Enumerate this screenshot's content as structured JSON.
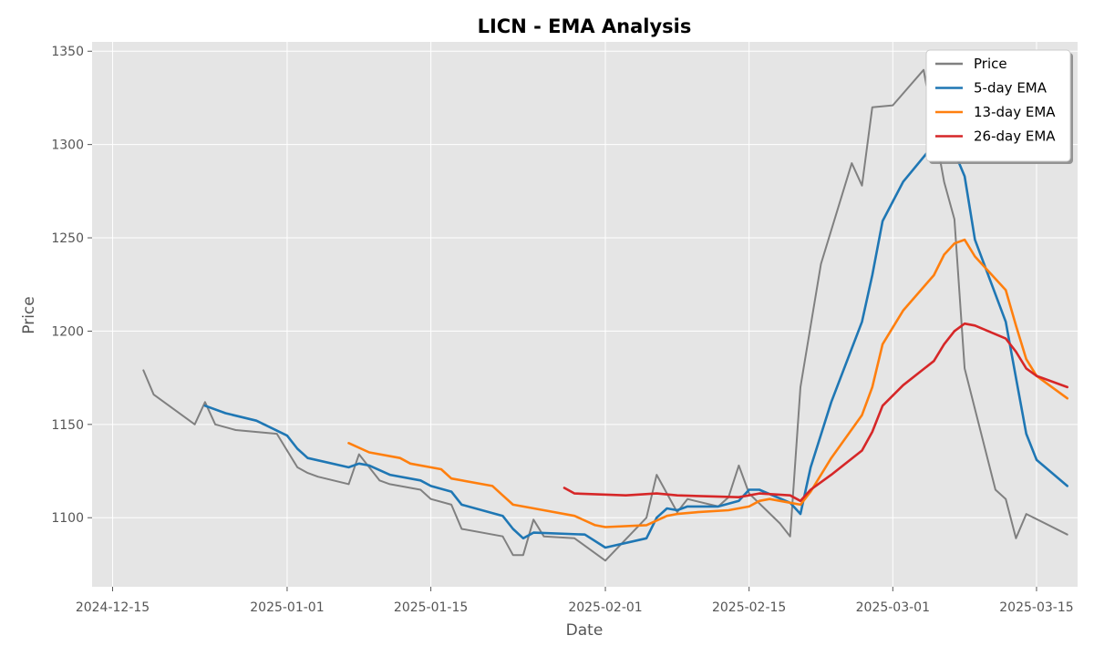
{
  "chart_data": {
    "type": "line",
    "title": "LICN - EMA Analysis",
    "xlabel": "Date",
    "ylabel": "Price",
    "xlim": [
      "2024-12-13",
      "2025-03-19"
    ],
    "ylim": [
      1063,
      1355
    ],
    "x_ticks": [
      "2024-12-15",
      "2025-01-01",
      "2025-01-15",
      "2025-02-01",
      "2025-02-15",
      "2025-03-01",
      "2025-03-15"
    ],
    "y_ticks": [
      1100,
      1150,
      1200,
      1250,
      1300,
      1350
    ],
    "grid": true,
    "legend_position": "upper-right",
    "series": [
      {
        "name": "Price",
        "color": "#808080",
        "points": [
          [
            "2024-12-18",
            1179
          ],
          [
            "2024-12-19",
            1166
          ],
          [
            "2024-12-23",
            1150
          ],
          [
            "2024-12-24",
            1162
          ],
          [
            "2024-12-25",
            1150
          ],
          [
            "2024-12-27",
            1147
          ],
          [
            "2024-12-31",
            1145
          ],
          [
            "2025-01-02",
            1127
          ],
          [
            "2025-01-03",
            1124
          ],
          [
            "2025-01-04",
            1122
          ],
          [
            "2025-01-07",
            1118
          ],
          [
            "2025-01-08",
            1134
          ],
          [
            "2025-01-10",
            1120
          ],
          [
            "2025-01-11",
            1118
          ],
          [
            "2025-01-14",
            1115
          ],
          [
            "2025-01-15",
            1110
          ],
          [
            "2025-01-17",
            1107
          ],
          [
            "2025-01-18",
            1094
          ],
          [
            "2025-01-22",
            1090
          ],
          [
            "2025-01-23",
            1080
          ],
          [
            "2025-01-24",
            1080
          ],
          [
            "2025-01-25",
            1099
          ],
          [
            "2025-01-26",
            1090
          ],
          [
            "2025-01-29",
            1089
          ],
          [
            "2025-02-01",
            1077
          ],
          [
            "2025-02-05",
            1100
          ],
          [
            "2025-02-06",
            1123
          ],
          [
            "2025-02-08",
            1103
          ],
          [
            "2025-02-09",
            1110
          ],
          [
            "2025-02-12",
            1106
          ],
          [
            "2025-02-13",
            1111
          ],
          [
            "2025-02-14",
            1128
          ],
          [
            "2025-02-15",
            1113
          ],
          [
            "2025-02-18",
            1097
          ],
          [
            "2025-02-19",
            1090
          ],
          [
            "2025-02-20",
            1170
          ],
          [
            "2025-02-22",
            1236
          ],
          [
            "2025-02-25",
            1290
          ],
          [
            "2025-02-26",
            1278
          ],
          [
            "2025-02-27",
            1320
          ],
          [
            "2025-03-01",
            1321
          ],
          [
            "2025-03-04",
            1340
          ],
          [
            "2025-03-06",
            1280
          ],
          [
            "2025-03-07",
            1260
          ],
          [
            "2025-03-08",
            1180
          ],
          [
            "2025-03-11",
            1115
          ],
          [
            "2025-03-12",
            1110
          ],
          [
            "2025-03-13",
            1089
          ],
          [
            "2025-03-14",
            1102
          ],
          [
            "2025-03-18",
            1091
          ]
        ]
      },
      {
        "name": "5-day EMA",
        "color": "#1f77b4",
        "points": [
          [
            "2024-12-24",
            1160
          ],
          [
            "2024-12-26",
            1156
          ],
          [
            "2024-12-29",
            1152
          ],
          [
            "2025-01-01",
            1144
          ],
          [
            "2025-01-02",
            1137
          ],
          [
            "2025-01-03",
            1132
          ],
          [
            "2025-01-07",
            1127
          ],
          [
            "2025-01-08",
            1129
          ],
          [
            "2025-01-09",
            1128
          ],
          [
            "2025-01-11",
            1123
          ],
          [
            "2025-01-14",
            1120
          ],
          [
            "2025-01-15",
            1117
          ],
          [
            "2025-01-17",
            1114
          ],
          [
            "2025-01-18",
            1107
          ],
          [
            "2025-01-22",
            1101
          ],
          [
            "2025-01-23",
            1094
          ],
          [
            "2025-01-24",
            1089
          ],
          [
            "2025-01-25",
            1092
          ],
          [
            "2025-01-30",
            1091
          ],
          [
            "2025-02-01",
            1084
          ],
          [
            "2025-02-05",
            1089
          ],
          [
            "2025-02-06",
            1100
          ],
          [
            "2025-02-07",
            1105
          ],
          [
            "2025-02-08",
            1104
          ],
          [
            "2025-02-09",
            1106
          ],
          [
            "2025-02-12",
            1106
          ],
          [
            "2025-02-14",
            1109
          ],
          [
            "2025-02-15",
            1115
          ],
          [
            "2025-02-16",
            1115
          ],
          [
            "2025-02-19",
            1108
          ],
          [
            "2025-02-20",
            1102
          ],
          [
            "2025-02-21",
            1127
          ],
          [
            "2025-02-23",
            1162
          ],
          [
            "2025-02-26",
            1205
          ],
          [
            "2025-02-27",
            1230
          ],
          [
            "2025-02-28",
            1259
          ],
          [
            "2025-03-02",
            1280
          ],
          [
            "2025-03-05",
            1300
          ],
          [
            "2025-03-06",
            1303
          ],
          [
            "2025-03-07",
            1296
          ],
          [
            "2025-03-08",
            1283
          ],
          [
            "2025-03-09",
            1249
          ],
          [
            "2025-03-12",
            1205
          ],
          [
            "2025-03-13",
            1175
          ],
          [
            "2025-03-14",
            1145
          ],
          [
            "2025-03-15",
            1131
          ],
          [
            "2025-03-18",
            1117
          ]
        ]
      },
      {
        "name": "13-day EMA",
        "color": "#ff7f0e",
        "points": [
          [
            "2025-01-07",
            1140
          ],
          [
            "2025-01-09",
            1135
          ],
          [
            "2025-01-12",
            1132
          ],
          [
            "2025-01-13",
            1129
          ],
          [
            "2025-01-16",
            1126
          ],
          [
            "2025-01-17",
            1121
          ],
          [
            "2025-01-21",
            1117
          ],
          [
            "2025-01-22",
            1112
          ],
          [
            "2025-01-23",
            1107
          ],
          [
            "2025-01-24",
            1106
          ],
          [
            "2025-01-26",
            1104
          ],
          [
            "2025-01-29",
            1101
          ],
          [
            "2025-01-31",
            1096
          ],
          [
            "2025-02-01",
            1095
          ],
          [
            "2025-02-05",
            1096
          ],
          [
            "2025-02-07",
            1101
          ],
          [
            "2025-02-08",
            1102
          ],
          [
            "2025-02-10",
            1103
          ],
          [
            "2025-02-13",
            1104
          ],
          [
            "2025-02-15",
            1106
          ],
          [
            "2025-02-16",
            1109
          ],
          [
            "2025-02-17",
            1110
          ],
          [
            "2025-02-19",
            1108
          ],
          [
            "2025-02-20",
            1107
          ],
          [
            "2025-02-21",
            1114
          ],
          [
            "2025-02-23",
            1132
          ],
          [
            "2025-02-26",
            1155
          ],
          [
            "2025-02-27",
            1170
          ],
          [
            "2025-02-28",
            1193
          ],
          [
            "2025-03-02",
            1211
          ],
          [
            "2025-03-05",
            1230
          ],
          [
            "2025-03-06",
            1241
          ],
          [
            "2025-03-07",
            1247
          ],
          [
            "2025-03-08",
            1249
          ],
          [
            "2025-03-09",
            1240
          ],
          [
            "2025-03-12",
            1222
          ],
          [
            "2025-03-13",
            1203
          ],
          [
            "2025-03-14",
            1185
          ],
          [
            "2025-03-15",
            1176
          ],
          [
            "2025-03-18",
            1164
          ]
        ]
      },
      {
        "name": "26-day EMA",
        "color": "#d62728",
        "points": [
          [
            "2025-01-28",
            1116
          ],
          [
            "2025-01-29",
            1113
          ],
          [
            "2025-02-03",
            1112
          ],
          [
            "2025-02-06",
            1113
          ],
          [
            "2025-02-08",
            1112
          ],
          [
            "2025-02-14",
            1111
          ],
          [
            "2025-02-16",
            1113
          ],
          [
            "2025-02-19",
            1112
          ],
          [
            "2025-02-20",
            1109
          ],
          [
            "2025-02-21",
            1115
          ],
          [
            "2025-02-23",
            1123
          ],
          [
            "2025-02-26",
            1136
          ],
          [
            "2025-02-27",
            1146
          ],
          [
            "2025-02-28",
            1160
          ],
          [
            "2025-03-02",
            1171
          ],
          [
            "2025-03-05",
            1184
          ],
          [
            "2025-03-06",
            1193
          ],
          [
            "2025-03-07",
            1200
          ],
          [
            "2025-03-08",
            1204
          ],
          [
            "2025-03-09",
            1203
          ],
          [
            "2025-03-12",
            1196
          ],
          [
            "2025-03-13",
            1189
          ],
          [
            "2025-03-14",
            1180
          ],
          [
            "2025-03-15",
            1176
          ],
          [
            "2025-03-18",
            1170
          ]
        ]
      }
    ]
  }
}
